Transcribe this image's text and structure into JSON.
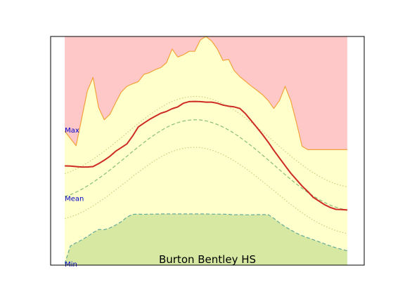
{
  "chart_data": {
    "type": "area",
    "title": "Burton Bentley HS",
    "xlabel": "",
    "ylabel": "",
    "grid": false,
    "x": [
      0,
      1,
      2,
      3,
      4,
      5,
      6,
      7,
      8,
      9,
      10,
      11,
      12,
      13,
      14,
      15,
      16,
      17,
      18,
      19,
      20,
      21,
      22,
      23,
      24,
      25,
      26,
      27,
      28,
      29,
      30,
      31,
      32,
      33,
      34,
      35,
      36,
      37,
      38,
      39,
      40,
      41,
      42,
      43,
      44,
      45,
      46,
      47,
      48,
      49,
      50
    ],
    "xlim": [
      -2.5,
      53
    ],
    "ylim": [
      0,
      100
    ],
    "band_labels": [
      {
        "text": "Max",
        "y": 59.2
      },
      {
        "text": "Mean",
        "y": 29.3
      },
      {
        "text": "Min",
        "y": 0.6
      }
    ],
    "series": [
      {
        "role": "max_bound",
        "color": "#f4a23a",
        "fill": "#ffc8c8",
        "values": [
          58.6,
          55.4,
          52.2,
          64.2,
          76.2,
          82.1,
          68.9,
          63.6,
          66.0,
          71.0,
          75.7,
          78.2,
          79.3,
          80.2,
          83.4,
          84.2,
          85.5,
          86.4,
          88.5,
          94.5,
          91.0,
          92.0,
          93.5,
          93.5,
          98.5,
          100.0,
          98.0,
          94.5,
          89.5,
          90.0,
          85.0,
          82.4,
          80.4,
          78.3,
          76.5,
          74.5,
          72.0,
          68.5,
          72.0,
          78.2,
          72.0,
          62.4,
          52.0,
          50.5,
          50.5,
          50.5,
          50.5,
          50.5,
          50.5,
          50.5,
          50.5
        ]
      },
      {
        "role": "upper_band",
        "fill": "#ffffcc",
        "values": [
          58.6,
          55.4,
          52.2,
          64.2,
          76.2,
          82.1,
          68.9,
          63.6,
          66.0,
          71.0,
          75.7,
          78.2,
          79.3,
          80.2,
          83.4,
          84.2,
          85.5,
          86.4,
          88.5,
          94.5,
          91.0,
          92.0,
          93.5,
          93.5,
          98.5,
          100.0,
          98.0,
          94.5,
          89.5,
          90.0,
          85.0,
          82.4,
          80.4,
          78.3,
          76.5,
          74.5,
          72.0,
          68.5,
          72.0,
          78.2,
          72.0,
          62.4,
          52.0,
          50.5,
          50.5,
          50.5,
          50.5,
          50.5,
          50.5,
          50.5,
          50.5
        ]
      },
      {
        "role": "current",
        "color": "#cc2a22",
        "values": [
          43.4,
          43.3,
          43.1,
          42.9,
          42.9,
          43.1,
          44.4,
          45.9,
          47.6,
          49.8,
          51.4,
          53.0,
          56.4,
          60.4,
          62.1,
          63.7,
          65.1,
          66.4,
          67.2,
          68.4,
          69.2,
          70.8,
          71.5,
          71.6,
          71.5,
          71.3,
          71.3,
          70.8,
          70.0,
          69.5,
          69.2,
          68.5,
          66.2,
          63.2,
          60.2,
          57.1,
          53.8,
          50.2,
          46.8,
          43.5,
          40.2,
          37.4,
          34.6,
          32.2,
          29.6,
          28.0,
          26.4,
          25.2,
          24.4,
          24.3,
          24.1
        ]
      },
      {
        "role": "mean",
        "color": "#88c070",
        "dash": "dashed",
        "values": [
          30.0,
          30.8,
          31.9,
          33.2,
          34.6,
          36.2,
          37.9,
          39.7,
          41.6,
          43.6,
          45.6,
          47.6,
          49.7,
          51.7,
          53.6,
          55.5,
          57.2,
          58.8,
          60.2,
          61.4,
          62.3,
          63.0,
          63.4,
          63.6,
          63.5,
          63.1,
          62.4,
          61.5,
          60.4,
          59.1,
          57.6,
          55.9,
          54.1,
          52.2,
          50.2,
          48.1,
          46.0,
          43.9,
          41.7,
          39.6,
          37.5,
          35.5,
          33.6,
          31.8,
          30.2,
          28.7,
          27.4,
          26.2,
          25.3,
          24.6,
          24.0
        ]
      },
      {
        "role": "plus_sd",
        "color": "#cccc80",
        "dash": "dotted",
        "values": [
          40.0,
          40.9,
          42.0,
          43.3,
          44.7,
          46.3,
          48.0,
          49.8,
          51.7,
          53.7,
          55.7,
          57.8,
          59.9,
          61.9,
          63.8,
          65.7,
          67.4,
          69.0,
          70.4,
          71.6,
          72.5,
          73.2,
          73.6,
          73.8,
          73.7,
          73.3,
          72.6,
          71.7,
          70.6,
          69.3,
          67.8,
          66.1,
          64.3,
          62.4,
          60.4,
          58.3,
          56.2,
          54.1,
          51.9,
          49.8,
          47.7,
          45.7,
          43.8,
          42.0,
          40.4,
          38.9,
          37.6,
          36.4,
          35.5,
          34.8,
          34.2
        ]
      },
      {
        "role": "minus_sd",
        "color": "#cccc80",
        "dash": "dotted",
        "values": [
          20.3,
          21.1,
          22.0,
          23.1,
          24.4,
          25.9,
          27.5,
          29.2,
          31.0,
          32.9,
          34.8,
          36.7,
          38.7,
          40.6,
          42.4,
          44.2,
          45.8,
          47.3,
          48.6,
          49.7,
          50.5,
          51.1,
          51.4,
          51.5,
          51.4,
          51.0,
          50.3,
          49.4,
          48.3,
          47.0,
          45.6,
          44.0,
          42.3,
          40.5,
          38.6,
          36.6,
          34.6,
          32.6,
          30.5,
          28.5,
          26.6,
          24.7,
          22.9,
          21.2,
          19.7,
          18.3,
          17.1,
          16.0,
          15.1,
          14.4,
          13.8
        ]
      },
      {
        "role": "min_bound",
        "color": "#66aa99",
        "fill": "#d6e8a2",
        "dash": "dashed",
        "values": [
          0.6,
          8.4,
          9.8,
          11.0,
          12.5,
          14.2,
          15.6,
          15.5,
          16.3,
          17.5,
          19.0,
          21.0,
          22.2,
          22.3,
          22.2,
          22.3,
          22.3,
          22.4,
          22.4,
          22.4,
          22.4,
          22.4,
          22.4,
          22.4,
          22.4,
          22.4,
          22.3,
          22.3,
          22.3,
          22.2,
          22.0,
          22.1,
          22.0,
          22.0,
          22.1,
          22.1,
          22.1,
          20.5,
          18.5,
          16.8,
          15.4,
          14.0,
          12.9,
          12.0,
          11.1,
          10.2,
          9.3,
          8.4,
          7.6,
          6.9,
          6.3
        ]
      }
    ]
  }
}
